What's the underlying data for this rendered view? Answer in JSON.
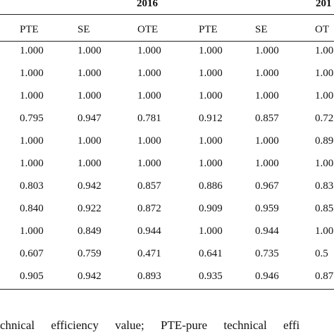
{
  "table": {
    "year_headers": [
      "2016",
      "201"
    ],
    "columns": [
      "PTE",
      "SE",
      "OTE",
      "PTE",
      "SE",
      "OT"
    ],
    "rows": [
      [
        "1.000",
        "1.000",
        "1.000",
        "1.000",
        "1.000",
        "1.00"
      ],
      [
        "1.000",
        "1.000",
        "1.000",
        "1.000",
        "1.000",
        "1.00"
      ],
      [
        "1.000",
        "1.000",
        "1.000",
        "1.000",
        "1.000",
        "1.00"
      ],
      [
        "0.795",
        "0.947",
        "0.781",
        "0.912",
        "0.857",
        "0.72"
      ],
      [
        "1.000",
        "1.000",
        "1.000",
        "1.000",
        "1.000",
        "0.89"
      ],
      [
        "1.000",
        "1.000",
        "1.000",
        "1.000",
        "1.000",
        "1.00"
      ],
      [
        "0.803",
        "0.942",
        "0.857",
        "0.886",
        "0.967",
        "0.83"
      ],
      [
        "0.840",
        "0.922",
        "0.872",
        "0.909",
        "0.959",
        "0.85"
      ],
      [
        "1.000",
        "0.849",
        "0.944",
        "1.000",
        "0.944",
        "1.00"
      ],
      [
        "0.607",
        "0.759",
        "0.471",
        "0.641",
        "0.735",
        "0.5"
      ],
      [
        "0.905",
        "0.942",
        "0.893",
        "0.935",
        "0.946",
        "0.87"
      ]
    ]
  },
  "footnote": "chnical efficiency value; PTE-pure technical effi"
}
